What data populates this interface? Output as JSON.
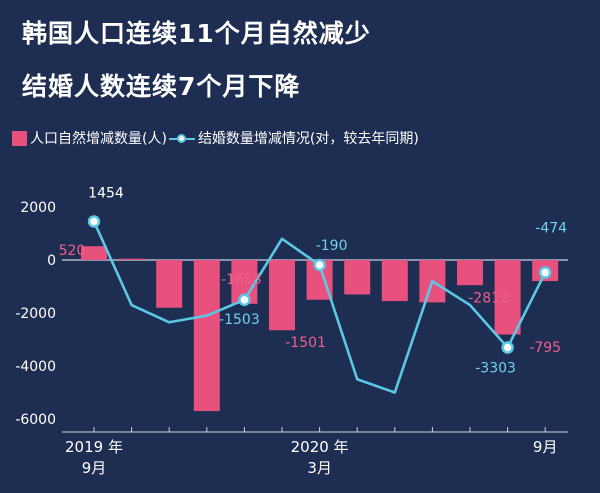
{
  "title_line1": "韩国人口连续11个月自然减少",
  "title_line2": "结婚人数连续7个月下降",
  "colors": {
    "background": "#1e2d52",
    "bar": "#e8507e",
    "line": "#5bc8e6",
    "pink_label": "#f0608a",
    "blue_label": "#6fd3ea"
  },
  "chart_data": {
    "type": "bar",
    "legend": [
      {
        "name": "人口自然增减数量(人)",
        "kind": "bar"
      },
      {
        "name": "结婚数量增减情况(对，较去年同期)",
        "kind": "line"
      }
    ],
    "categories": [
      "2019-09",
      "2019-10",
      "2019-11",
      "2019-12",
      "2020-01",
      "2020-02",
      "2020-03",
      "2020-04",
      "2020-05",
      "2020-06",
      "2020-07",
      "2020-08",
      "2020-09"
    ],
    "x_tick_labels": [
      {
        "index": 0,
        "lines": [
          "2019 年",
          "9月"
        ]
      },
      {
        "index": 6,
        "lines": [
          "2020 年",
          "3月"
        ]
      },
      {
        "index": 12,
        "lines": [
          "9月"
        ]
      }
    ],
    "y_ticks": [
      2000,
      0,
      -2000,
      -4000,
      -6000
    ],
    "ylim": [
      -6400,
      2400
    ],
    "series": [
      {
        "name": "人口自然增减数量(人)",
        "kind": "bar",
        "values": [
          520,
          50,
          -1800,
          -5700,
          -1653,
          -2650,
          -1501,
          -1300,
          -1550,
          -1600,
          -950,
          -2812,
          -795
        ]
      },
      {
        "name": "结婚数量增减情况(对，较去年同期)",
        "kind": "line",
        "values": [
          1454,
          -1700,
          -2350,
          -2100,
          -1503,
          800,
          -190,
          -4500,
          -5000,
          -800,
          -1700,
          -3303,
          -474
        ]
      }
    ],
    "data_labels": [
      {
        "series": 0,
        "index": 0,
        "text": "520",
        "color": "pink"
      },
      {
        "series": 1,
        "index": 0,
        "text": "1454",
        "color": "white"
      },
      {
        "series": 0,
        "index": 4,
        "text": "-1653",
        "color": "pink"
      },
      {
        "series": 1,
        "index": 4,
        "text": "-1503",
        "color": "blue"
      },
      {
        "series": 1,
        "index": 6,
        "text": "-190",
        "color": "blue"
      },
      {
        "series": 0,
        "index": 6,
        "text": "-1501",
        "color": "pink"
      },
      {
        "series": 0,
        "index": 11,
        "text": "-2812",
        "color": "pink"
      },
      {
        "series": 1,
        "index": 11,
        "text": "-3303",
        "color": "blue"
      },
      {
        "series": 1,
        "index": 12,
        "text": "-474",
        "color": "blue"
      },
      {
        "series": 0,
        "index": 12,
        "text": "-795",
        "color": "pink"
      }
    ],
    "highlighted_points": [
      0,
      4,
      6,
      11,
      12
    ],
    "grid": false,
    "legend_position": "top-left"
  }
}
